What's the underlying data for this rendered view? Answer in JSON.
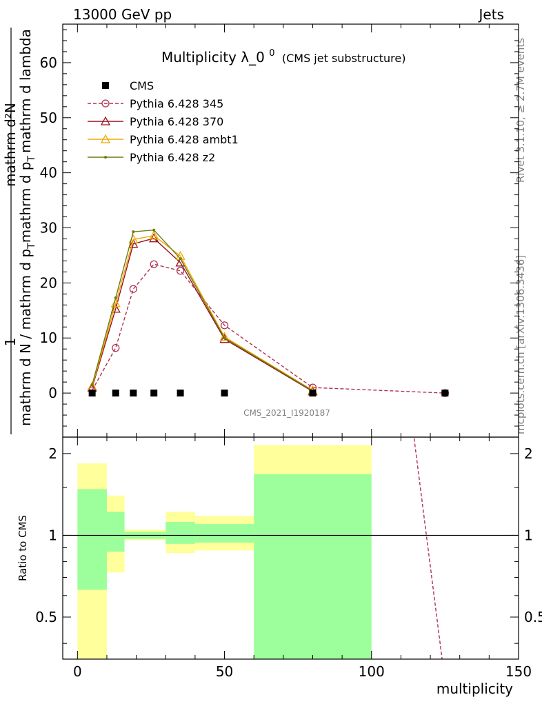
{
  "header": {
    "energy_label": "13000 GeV pp",
    "category_label": "Jets"
  },
  "side": {
    "rivet_label": "Rivet 3.1.10, ≥ 2.7M events",
    "mcplots_label": "mcplots.cern.ch [arXiv:1306.3436]"
  },
  "analysis_label": "CMS_2021_I1920187",
  "chart_data": [
    {
      "type": "line",
      "title_main": "Multiplicity λ_0",
      "title_sup": "0",
      "title_sub": "(CMS jet substructure)",
      "ylabel_numerator": "mathrm d²N",
      "ylabel_denominator": "mathrm d N / mathrm d p",
      "ylabel_denominator_sub": "T",
      "ylabel_denominator_rest": "mathrm d p",
      "ylabel_denominator_rest_sub": "T",
      "ylabel_denominator_tail": "mathrm d lambda",
      "ylabel_one": "1",
      "xlim": [
        -5,
        150
      ],
      "ylim": [
        -8,
        67
      ],
      "yticks": [
        0,
        10,
        20,
        30,
        40,
        50,
        60
      ],
      "legend_position": "top-left",
      "series": [
        {
          "name": "CMS",
          "color": "#000000",
          "marker": "square",
          "x": [
            5,
            13,
            19,
            26,
            35,
            50,
            80,
            125
          ],
          "y": [
            0,
            0,
            0,
            0,
            0,
            0,
            0,
            0
          ]
        },
        {
          "name": "Pythia 6.428 345",
          "color": "#b03050",
          "marker": "circle",
          "dashed": true,
          "x": [
            5,
            13,
            19,
            26,
            35,
            50,
            80,
            125
          ],
          "y": [
            0.5,
            8.2,
            18.9,
            23.4,
            22.2,
            12.3,
            1.0,
            0.0
          ]
        },
        {
          "name": "Pythia 6.428 370",
          "color": "#9b1020",
          "marker": "triangle",
          "x": [
            5,
            13,
            19,
            26,
            35,
            50,
            80
          ],
          "y": [
            1.0,
            15.3,
            27.1,
            28.1,
            23.7,
            9.8,
            0.3
          ]
        },
        {
          "name": "Pythia 6.428 ambt1",
          "color": "#f0a800",
          "marker": "triangle",
          "x": [
            5,
            13,
            19,
            26,
            35,
            50,
            80
          ],
          "y": [
            1.2,
            16.3,
            27.9,
            28.6,
            24.9,
            10.2,
            0.5
          ]
        },
        {
          "name": "Pythia 6.428 z2",
          "color": "#6b7c10",
          "marker": "dot",
          "x": [
            5,
            13,
            19,
            26,
            35,
            50,
            80
          ],
          "y": [
            1.5,
            17.3,
            29.3,
            29.6,
            24.4,
            10.0,
            0.4
          ]
        }
      ]
    },
    {
      "type": "ratio",
      "ylabel": "Ratio to CMS",
      "xlabel": "multiplicity",
      "xlim": [
        -5,
        150
      ],
      "ylim": [
        0.35,
        2.3
      ],
      "log_y": true,
      "xticks": [
        0,
        50,
        100,
        150
      ],
      "yticks": [
        0.5,
        1,
        2
      ],
      "ytick_labels": [
        "0.5",
        "1",
        "2"
      ],
      "bands": [
        {
          "x": [
            0,
            10
          ],
          "stat": [
            0.63,
            1.48
          ],
          "total": [
            0.35,
            1.84
          ]
        },
        {
          "x": [
            10,
            16
          ],
          "stat": [
            0.87,
            1.22
          ],
          "total": [
            0.73,
            1.4
          ]
        },
        {
          "x": [
            16,
            30
          ],
          "stat": [
            0.97,
            1.03
          ],
          "total": [
            0.96,
            1.05
          ]
        },
        {
          "x": [
            30,
            40
          ],
          "stat": [
            0.93,
            1.12
          ],
          "total": [
            0.86,
            1.22
          ]
        },
        {
          "x": [
            40,
            60
          ],
          "stat": [
            0.94,
            1.1
          ],
          "total": [
            0.88,
            1.18
          ]
        },
        {
          "x": [
            60,
            100
          ],
          "stat": [
            0.35,
            1.68
          ],
          "total": [
            0.35,
            2.15
          ]
        }
      ],
      "band_colors": {
        "stat": "#9cff9c",
        "total": "#ffff9c"
      },
      "ratio_line": {
        "name": "Pythia 6.428 345",
        "color": "#b03050",
        "x": [
          114,
          124
        ],
        "y": [
          2.5,
          0.35
        ]
      }
    }
  ]
}
